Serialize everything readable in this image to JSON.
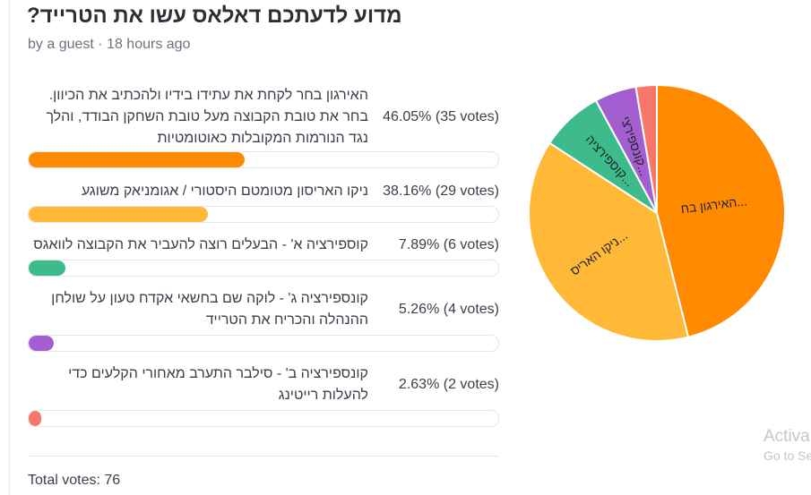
{
  "poll": {
    "title": "מדוע לדעתכם דאלאס עשו את הטרייד?",
    "meta": "by a guest · 18 hours ago",
    "options": [
      {
        "text": "האירגון בחר לקחת את עתידו בידיו ולהכתיב את הכיוון. בחר את טובת הקבוצה מעל טובת השחקן הבודד, והלך נגד הנורמות המקובלות כאוטומטיות",
        "percent": 46.05,
        "percent_label": "46.05%",
        "votes_label": "(35 votes)",
        "color": "#ff8a00",
        "slice_label": "האירגון בח..."
      },
      {
        "text": "ניקו האריסון מטומטם היסטורי / אגומניאק משוגע",
        "percent": 38.16,
        "percent_label": "38.16%",
        "votes_label": "(29 votes)",
        "color": "#ffb936",
        "slice_label": "ניקו האריס..."
      },
      {
        "text": "קוספירציה א' - הבעלים רוצה להעביר את הקבוצה לוואגס",
        "percent": 7.89,
        "percent_label": "7.89%",
        "votes_label": "(6 votes)",
        "color": "#3dbb8c",
        "slice_label": "קוספירציה..."
      },
      {
        "text": "קונספירציה ג' - לוקה שם בחשאי אקדח טעון על שולחן ההנהלה והכריח את הטרייד",
        "percent": 5.26,
        "percent_label": "5.26%",
        "votes_label": "(4 votes)",
        "color": "#a35fd0",
        "slice_label": "קונספירצי..."
      },
      {
        "text": "קונספירציה ב' - סילבר התערב מאחורי הקלעים כדי להעלות רייטינג",
        "percent": 2.63,
        "percent_label": "2.63%",
        "votes_label": "(2 votes)",
        "color": "#f7786b",
        "slice_label": ""
      }
    ],
    "total": "Total votes: 76"
  },
  "watermark": {
    "line1": "Activa",
    "line2": "Go to Se"
  },
  "chart_data": {
    "type": "pie",
    "categories": [
      "האירגון בח...",
      "ניקו האריס...",
      "קוספירציה...",
      "קונספירצי...",
      ""
    ],
    "values": [
      46.05,
      38.16,
      7.89,
      5.26,
      2.63
    ],
    "colors": [
      "#ff8a00",
      "#ffb936",
      "#3dbb8c",
      "#a35fd0",
      "#f7786b"
    ]
  }
}
